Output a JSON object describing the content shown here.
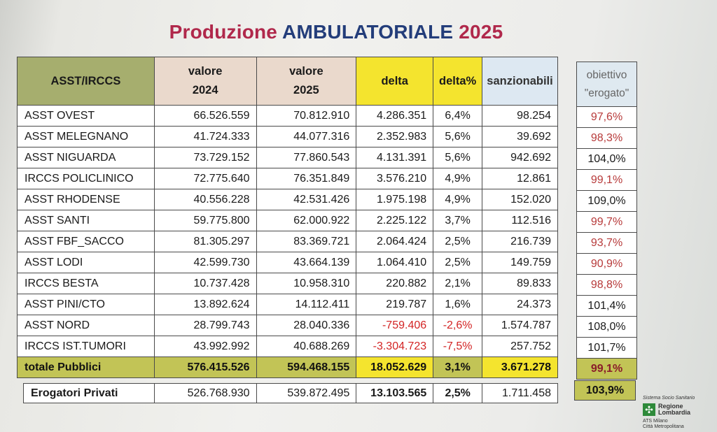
{
  "title": {
    "part1": "Produzione",
    "part2": "AMBULATORIALE",
    "part3": "2025"
  },
  "header": {
    "name": "ASST/IRCCS",
    "v2024_l1": "valore",
    "v2024_l2": "2024",
    "v2025_l1": "valore",
    "v2025_l2": "2025",
    "delta": "delta",
    "delta_pct": "delta%",
    "sanzionabili": "sanzionabili"
  },
  "rows": [
    {
      "name": "ASST OVEST",
      "v2024": "66.526.559",
      "v2025": "70.812.910",
      "delta": "4.286.351",
      "delta_pct": "6,4%",
      "sanz": "98.254",
      "obiettivo": "97,6%"
    },
    {
      "name": "ASST MELEGNANO",
      "v2024": "41.724.333",
      "v2025": "44.077.316",
      "delta": "2.352.983",
      "delta_pct": "5,6%",
      "sanz": "39.692",
      "obiettivo": "98,3%"
    },
    {
      "name": "ASST NIGUARDA",
      "v2024": "73.729.152",
      "v2025": "77.860.543",
      "delta": "4.131.391",
      "delta_pct": "5,6%",
      "sanz": "942.692",
      "obiettivo": "104,0%"
    },
    {
      "name": "IRCCS POLICLINICO",
      "v2024": "72.775.640",
      "v2025": "76.351.849",
      "delta": "3.576.210",
      "delta_pct": "4,9%",
      "sanz": "12.861",
      "obiettivo": "99,1%"
    },
    {
      "name": "ASST RHODENSE",
      "v2024": "40.556.228",
      "v2025": "42.531.426",
      "delta": "1.975.198",
      "delta_pct": "4,9%",
      "sanz": "152.020",
      "obiettivo": "109,0%"
    },
    {
      "name": "ASST SANTI",
      "v2024": "59.775.800",
      "v2025": "62.000.922",
      "delta": "2.225.122",
      "delta_pct": "3,7%",
      "sanz": "112.516",
      "obiettivo": "99,7%"
    },
    {
      "name": "ASST FBF_SACCO",
      "v2024": "81.305.297",
      "v2025": "83.369.721",
      "delta": "2.064.424",
      "delta_pct": "2,5%",
      "sanz": "216.739",
      "obiettivo": "93,7%"
    },
    {
      "name": "ASST LODI",
      "v2024": "42.599.730",
      "v2025": "43.664.139",
      "delta": "1.064.410",
      "delta_pct": "2,5%",
      "sanz": "149.759",
      "obiettivo": "90,9%"
    },
    {
      "name": "IRCCS BESTA",
      "v2024": "10.737.428",
      "v2025": "10.958.310",
      "delta": "220.882",
      "delta_pct": "2,1%",
      "sanz": "89.833",
      "obiettivo": "98,8%"
    },
    {
      "name": "ASST PINI/CTO",
      "v2024": "13.892.624",
      "v2025": "14.112.411",
      "delta": "219.787",
      "delta_pct": "1,6%",
      "sanz": "24.373",
      "obiettivo": "101,4%"
    },
    {
      "name": "ASST NORD",
      "v2024": "28.799.743",
      "v2025": "28.040.336",
      "delta": "-759.406",
      "delta_pct": "-2,6%",
      "sanz": "1.574.787",
      "obiettivo": "108,0%"
    },
    {
      "name": "IRCCS IST.TUMORI",
      "v2024": "43.992.992",
      "v2025": "40.688.269",
      "delta": "-3.304.723",
      "delta_pct": "-7,5%",
      "sanz": "257.752",
      "obiettivo": "101,7%"
    }
  ],
  "total": {
    "name": "totale Pubblici",
    "v2024": "576.415.526",
    "v2025": "594.468.155",
    "delta": "18.052.629",
    "delta_pct": "3,1%",
    "sanz": "3.671.278",
    "obiettivo": "99,1%"
  },
  "privati": {
    "name": "Erogatori Privati",
    "v2024": "526.768.930",
    "v2025": "539.872.495",
    "delta": "13.103.565",
    "delta_pct": "2,5%",
    "sanz": "1.711.458",
    "obiettivo": "103,9%"
  },
  "obiettivo_header": {
    "l1": "obiettivo",
    "l2": "\"erogato\""
  },
  "logo": {
    "system": "Sistema Socio Sanitario",
    "region_l1": "Regione",
    "region_l2": "Lombardia",
    "ats_l1": "ATS Milano",
    "ats_l2": "Città Metropolitana"
  },
  "colors": {
    "accent_red": "#b0284b",
    "accent_blue": "#233d7a",
    "olive": "#c2c456",
    "yellow": "#f4e42e",
    "negative": "#d32424"
  }
}
